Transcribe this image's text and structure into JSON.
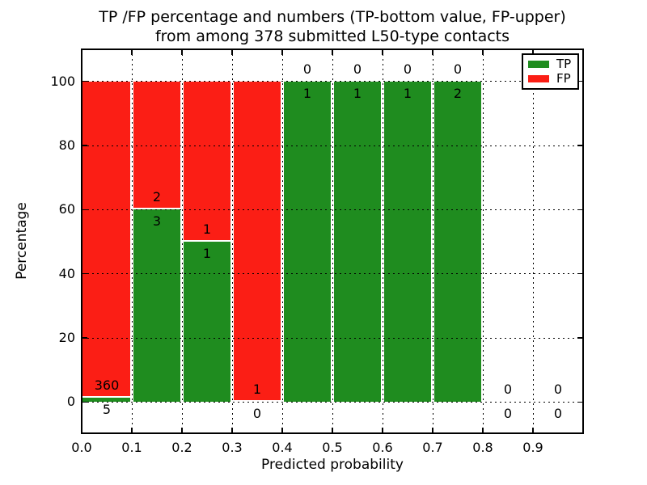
{
  "figure": {
    "background": "#ffffff"
  },
  "chart_data": {
    "type": "bar",
    "stacked": true,
    "title": "TP /FP percentage and numbers (TP-bottom value, FP-upper) from among 378 submitted L50-type contacts",
    "title_lines": [
      "TP /FP percentage and numbers (TP-bottom value, FP-upper)",
      "from among 378 submitted L50-type contacts"
    ],
    "total_submitted_contacts": 378,
    "xlabel": "Predicted probability",
    "ylabel": "Percentage",
    "xlim": [
      0.0,
      1.0
    ],
    "ylim": [
      -10,
      110
    ],
    "xticks": [
      "0.0",
      "0.1",
      "0.2",
      "0.3",
      "0.4",
      "0.5",
      "0.6",
      "0.7",
      "0.8",
      "0.9"
    ],
    "xtick_values": [
      0.0,
      0.1,
      0.2,
      0.3,
      0.4,
      0.5,
      0.6,
      0.7,
      0.8,
      0.9
    ],
    "yticks": [
      "0",
      "20",
      "40",
      "60",
      "80",
      "100"
    ],
    "ytick_values": [
      0,
      20,
      40,
      60,
      80,
      100
    ],
    "grid": {
      "on": true,
      "style": "dotted",
      "color": "#000000"
    },
    "bins": [
      {
        "range": [
          0.0,
          0.1
        ],
        "tp": 5,
        "fp": 360,
        "tp_percent": 1.4,
        "fp_percent": 98.6
      },
      {
        "range": [
          0.1,
          0.2
        ],
        "tp": 3,
        "fp": 2,
        "tp_percent": 60,
        "fp_percent": 40
      },
      {
        "range": [
          0.2,
          0.3
        ],
        "tp": 1,
        "fp": 1,
        "tp_percent": 50,
        "fp_percent": 50
      },
      {
        "range": [
          0.3,
          0.4
        ],
        "tp": 0,
        "fp": 1,
        "tp_percent": 0,
        "fp_percent": 100
      },
      {
        "range": [
          0.4,
          0.5
        ],
        "tp": 1,
        "fp": 0,
        "tp_percent": 100,
        "fp_percent": 0
      },
      {
        "range": [
          0.5,
          0.6
        ],
        "tp": 1,
        "fp": 0,
        "tp_percent": 100,
        "fp_percent": 0
      },
      {
        "range": [
          0.6,
          0.7
        ],
        "tp": 1,
        "fp": 0,
        "tp_percent": 100,
        "fp_percent": 0
      },
      {
        "range": [
          0.7,
          0.8
        ],
        "tp": 2,
        "fp": 0,
        "tp_percent": 100,
        "fp_percent": 0
      },
      {
        "range": [
          0.8,
          0.9
        ],
        "tp": 0,
        "fp": 0,
        "tp_percent": null,
        "fp_percent": null
      },
      {
        "range": [
          0.9,
          1.0
        ],
        "tp": 0,
        "fp": 0,
        "tp_percent": null,
        "fp_percent": null
      }
    ],
    "legend": {
      "position": "upper right",
      "entries": [
        {
          "label": "TP",
          "color": "#1f8c1f"
        },
        {
          "label": "FP",
          "color": "#fb1e15"
        }
      ]
    },
    "colors": {
      "tp": "#1f8c1f",
      "fp": "#fb1e15",
      "grid": "#000000",
      "text": "#000000"
    }
  }
}
